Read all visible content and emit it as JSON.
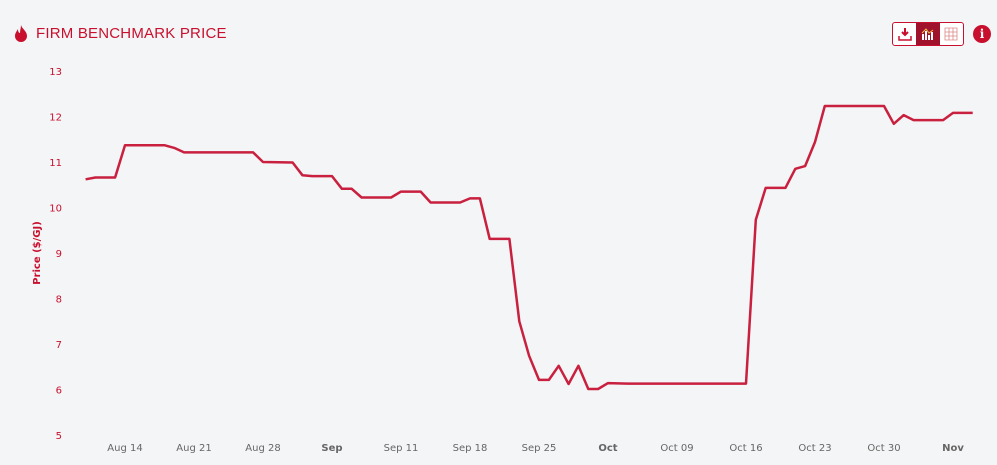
{
  "header": {
    "title": "FIRM BENCHMARK PRICE",
    "icon": "fire-icon"
  },
  "toolbar": {
    "buttons": [
      {
        "icon": "download-icon"
      },
      {
        "icon": "chart-icon",
        "active": true
      },
      {
        "icon": "table-icon"
      }
    ],
    "info_icon": "i"
  },
  "colors": {
    "accent": "#c8102e",
    "line": "#c8203e",
    "axis_text": "#666666"
  },
  "chart_data": {
    "type": "line",
    "title": "",
    "xlabel": "",
    "ylabel": "Price ($/GJ)",
    "ylim": [
      5,
      13
    ],
    "yticks": [
      "5",
      "6",
      "7",
      "8",
      "9",
      "10",
      "11",
      "12",
      "13"
    ],
    "xticks": [
      {
        "date": "Aug 14",
        "label": "Aug 14",
        "bold": false
      },
      {
        "date": "Aug 21",
        "label": "Aug 21",
        "bold": false
      },
      {
        "date": "Aug 28",
        "label": "Aug 28",
        "bold": false
      },
      {
        "date": "Sep 4",
        "label": "Sep",
        "bold": true
      },
      {
        "date": "Sep 11",
        "label": "Sep 11",
        "bold": false
      },
      {
        "date": "Sep 18",
        "label": "Sep 18",
        "bold": false
      },
      {
        "date": "Sep 25",
        "label": "Sep 25",
        "bold": false
      },
      {
        "date": "Oct 2",
        "label": "Oct",
        "bold": true
      },
      {
        "date": "Oct 9",
        "label": "Oct 09",
        "bold": false
      },
      {
        "date": "Oct 16",
        "label": "Oct 16",
        "bold": false
      },
      {
        "date": "Oct 23",
        "label": "Oct 23",
        "bold": false
      },
      {
        "date": "Oct 30",
        "label": "Oct 30",
        "bold": false
      },
      {
        "date": "Nov 6",
        "label": "Nov",
        "bold": true
      }
    ],
    "grid": false,
    "legend": "none",
    "series": [
      {
        "points": [
          [
            "Aug 10",
            10.62
          ],
          [
            "Aug 11",
            10.66
          ],
          [
            "Aug 13",
            10.66
          ],
          [
            "Aug 14",
            11.37
          ],
          [
            "Aug 18",
            11.37
          ],
          [
            "Aug 19",
            11.31
          ],
          [
            "Aug 20",
            11.21
          ],
          [
            "Aug 27",
            11.21
          ],
          [
            "Aug 28",
            11.0
          ],
          [
            "Aug 31",
            10.99
          ],
          [
            "Sep 1",
            10.71
          ],
          [
            "Sep 2",
            10.69
          ],
          [
            "Sep 4",
            10.69
          ],
          [
            "Sep 5",
            10.41
          ],
          [
            "Sep 6",
            10.41
          ],
          [
            "Sep 7",
            10.22
          ],
          [
            "Sep 10",
            10.22
          ],
          [
            "Sep 11",
            10.35
          ],
          [
            "Sep 13",
            10.35
          ],
          [
            "Sep 14",
            10.11
          ],
          [
            "Sep 17",
            10.11
          ],
          [
            "Sep 18",
            10.2
          ],
          [
            "Sep 19",
            10.2
          ],
          [
            "Sep 20",
            9.31
          ],
          [
            "Sep 22",
            9.31
          ],
          [
            "Sep 23",
            7.5
          ],
          [
            "Sep 24",
            6.74
          ],
          [
            "Sep 25",
            6.21
          ],
          [
            "Sep 26",
            6.21
          ],
          [
            "Sep 27",
            6.52
          ],
          [
            "Sep 28",
            6.12
          ],
          [
            "Sep 29",
            6.52
          ],
          [
            "Sep 30",
            6.01
          ],
          [
            "Oct 1",
            6.01
          ],
          [
            "Oct 2",
            6.14
          ],
          [
            "Oct 4",
            6.13
          ],
          [
            "Oct 16",
            6.13
          ],
          [
            "Oct 17",
            9.73
          ],
          [
            "Oct 18",
            10.43
          ],
          [
            "Oct 20",
            10.43
          ],
          [
            "Oct 21",
            10.85
          ],
          [
            "Oct 22",
            10.91
          ],
          [
            "Oct 23",
            11.44
          ],
          [
            "Oct 24",
            12.23
          ],
          [
            "Oct 30",
            12.23
          ],
          [
            "Oct 31",
            11.84
          ],
          [
            "Nov 1",
            12.03
          ],
          [
            "Nov 2",
            11.92
          ],
          [
            "Nov 5",
            11.92
          ],
          [
            "Nov 6",
            12.08
          ],
          [
            "Nov 8",
            12.08
          ]
        ]
      }
    ]
  }
}
